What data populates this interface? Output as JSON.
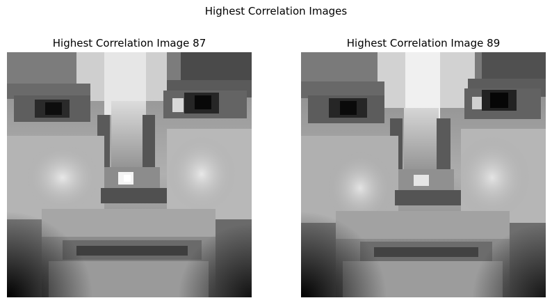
{
  "figure": {
    "suptitle": "Highest Correlation Images"
  },
  "panels": [
    {
      "title": "Highest Correlation Image 87",
      "colormap": "gray"
    },
    {
      "title": "Highest Correlation Image 89",
      "colormap": "gray"
    }
  ]
}
